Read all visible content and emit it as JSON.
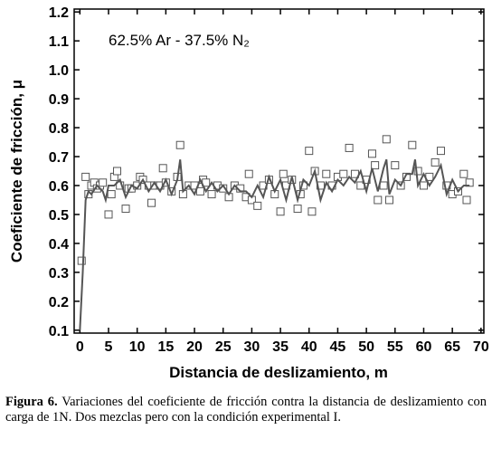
{
  "chart_data": {
    "type": "scatter",
    "annotation": "62.5% Ar - 37.5% N₂",
    "xlabel": "Distancia de deslizamiento, m",
    "ylabel": "Coeficiente de fricción, μ",
    "xlim": [
      -1,
      70.5
    ],
    "ylim": [
      0.09,
      1.21
    ],
    "xticks": [
      0,
      5,
      10,
      15,
      20,
      25,
      30,
      35,
      40,
      45,
      50,
      55,
      60,
      65,
      70
    ],
    "yticks": [
      0.1,
      0.2,
      0.3,
      0.4,
      0.5,
      0.6,
      0.7,
      0.8,
      0.9,
      {
        "value": 1,
        "label": "1.0"
      },
      1.1,
      1.2
    ],
    "series": [
      {
        "style": "markers",
        "color": "#555555",
        "x": [
          0.3,
          1,
          1.5,
          2,
          2.5,
          3,
          3.5,
          4,
          5,
          5.5,
          6,
          6.5,
          7,
          8,
          8.5,
          9,
          10,
          10.5,
          11,
          12,
          12.5,
          13,
          14,
          14.5,
          15,
          16,
          17,
          17.5,
          18,
          19,
          20,
          21,
          21.5,
          22,
          23,
          24,
          25,
          26,
          27,
          28,
          29,
          29.5,
          30,
          31,
          32,
          33,
          34,
          35,
          35.5,
          36,
          37,
          38,
          38.5,
          39,
          40,
          40.5,
          41,
          42,
          43,
          44,
          45,
          46,
          47,
          48,
          49,
          50,
          51,
          51.5,
          52,
          53,
          53.5,
          54,
          55,
          56,
          57,
          58,
          59,
          60,
          61,
          62,
          63,
          64,
          65,
          66,
          67,
          67.5,
          68
        ],
        "values": [
          0.34,
          0.63,
          0.57,
          0.6,
          0.61,
          0.59,
          0.6,
          0.61,
          0.5,
          0.57,
          0.63,
          0.65,
          0.6,
          0.52,
          0.59,
          0.59,
          0.6,
          0.63,
          0.62,
          0.6,
          0.54,
          0.6,
          0.6,
          0.66,
          0.61,
          0.58,
          0.63,
          0.74,
          0.57,
          0.6,
          0.6,
          0.58,
          0.62,
          0.61,
          0.57,
          0.6,
          0.59,
          0.56,
          0.6,
          0.59,
          0.56,
          0.64,
          0.55,
          0.53,
          0.6,
          0.62,
          0.57,
          0.51,
          0.64,
          0.6,
          0.62,
          0.52,
          0.57,
          0.6,
          0.72,
          0.51,
          0.65,
          0.6,
          0.64,
          0.6,
          0.63,
          0.64,
          0.73,
          0.64,
          0.6,
          0.62,
          0.71,
          0.67,
          0.55,
          0.6,
          0.76,
          0.55,
          0.67,
          0.6,
          0.63,
          0.74,
          0.65,
          0.6,
          0.63,
          0.68,
          0.72,
          0.6,
          0.57,
          0.58,
          0.64,
          0.55,
          0.61
        ]
      },
      {
        "style": "line",
        "color": "#555555",
        "x": [
          0,
          0.5,
          1,
          1.5,
          2,
          3,
          4,
          4.5,
          5,
          6,
          7,
          8,
          9,
          10,
          11,
          12,
          13,
          14,
          15,
          16,
          17,
          17.5,
          18,
          19,
          20,
          21,
          22,
          23,
          24,
          25,
          26,
          27,
          28,
          29,
          30,
          31,
          32,
          33,
          34,
          35,
          36,
          37,
          38,
          39,
          40,
          41,
          42,
          43,
          44,
          45,
          46,
          47,
          48,
          49,
          50,
          51,
          52,
          53,
          53.5,
          54,
          55,
          56,
          57,
          58,
          58.5,
          59,
          60,
          61,
          62,
          63,
          64,
          65,
          66,
          67,
          68
        ],
        "values": [
          0.1,
          0.3,
          0.55,
          0.58,
          0.57,
          0.6,
          0.58,
          0.55,
          0.6,
          0.6,
          0.62,
          0.56,
          0.6,
          0.59,
          0.62,
          0.58,
          0.61,
          0.58,
          0.62,
          0.57,
          0.62,
          0.69,
          0.58,
          0.6,
          0.57,
          0.62,
          0.58,
          0.61,
          0.58,
          0.6,
          0.57,
          0.6,
          0.58,
          0.58,
          0.56,
          0.6,
          0.56,
          0.63,
          0.58,
          0.62,
          0.55,
          0.63,
          0.55,
          0.62,
          0.6,
          0.65,
          0.55,
          0.61,
          0.58,
          0.62,
          0.6,
          0.63,
          0.61,
          0.65,
          0.58,
          0.66,
          0.58,
          0.66,
          0.69,
          0.57,
          0.62,
          0.6,
          0.64,
          0.64,
          0.69,
          0.6,
          0.64,
          0.6,
          0.63,
          0.67,
          0.57,
          0.62,
          0.58,
          0.6,
          0.6
        ]
      }
    ]
  },
  "caption": {
    "label": "Figura 6.",
    "text": " Variaciones del coeficiente de fricción contra la distancia de deslizamiento con carga de 1N. Dos mezclas pero con la condición experimental I."
  }
}
